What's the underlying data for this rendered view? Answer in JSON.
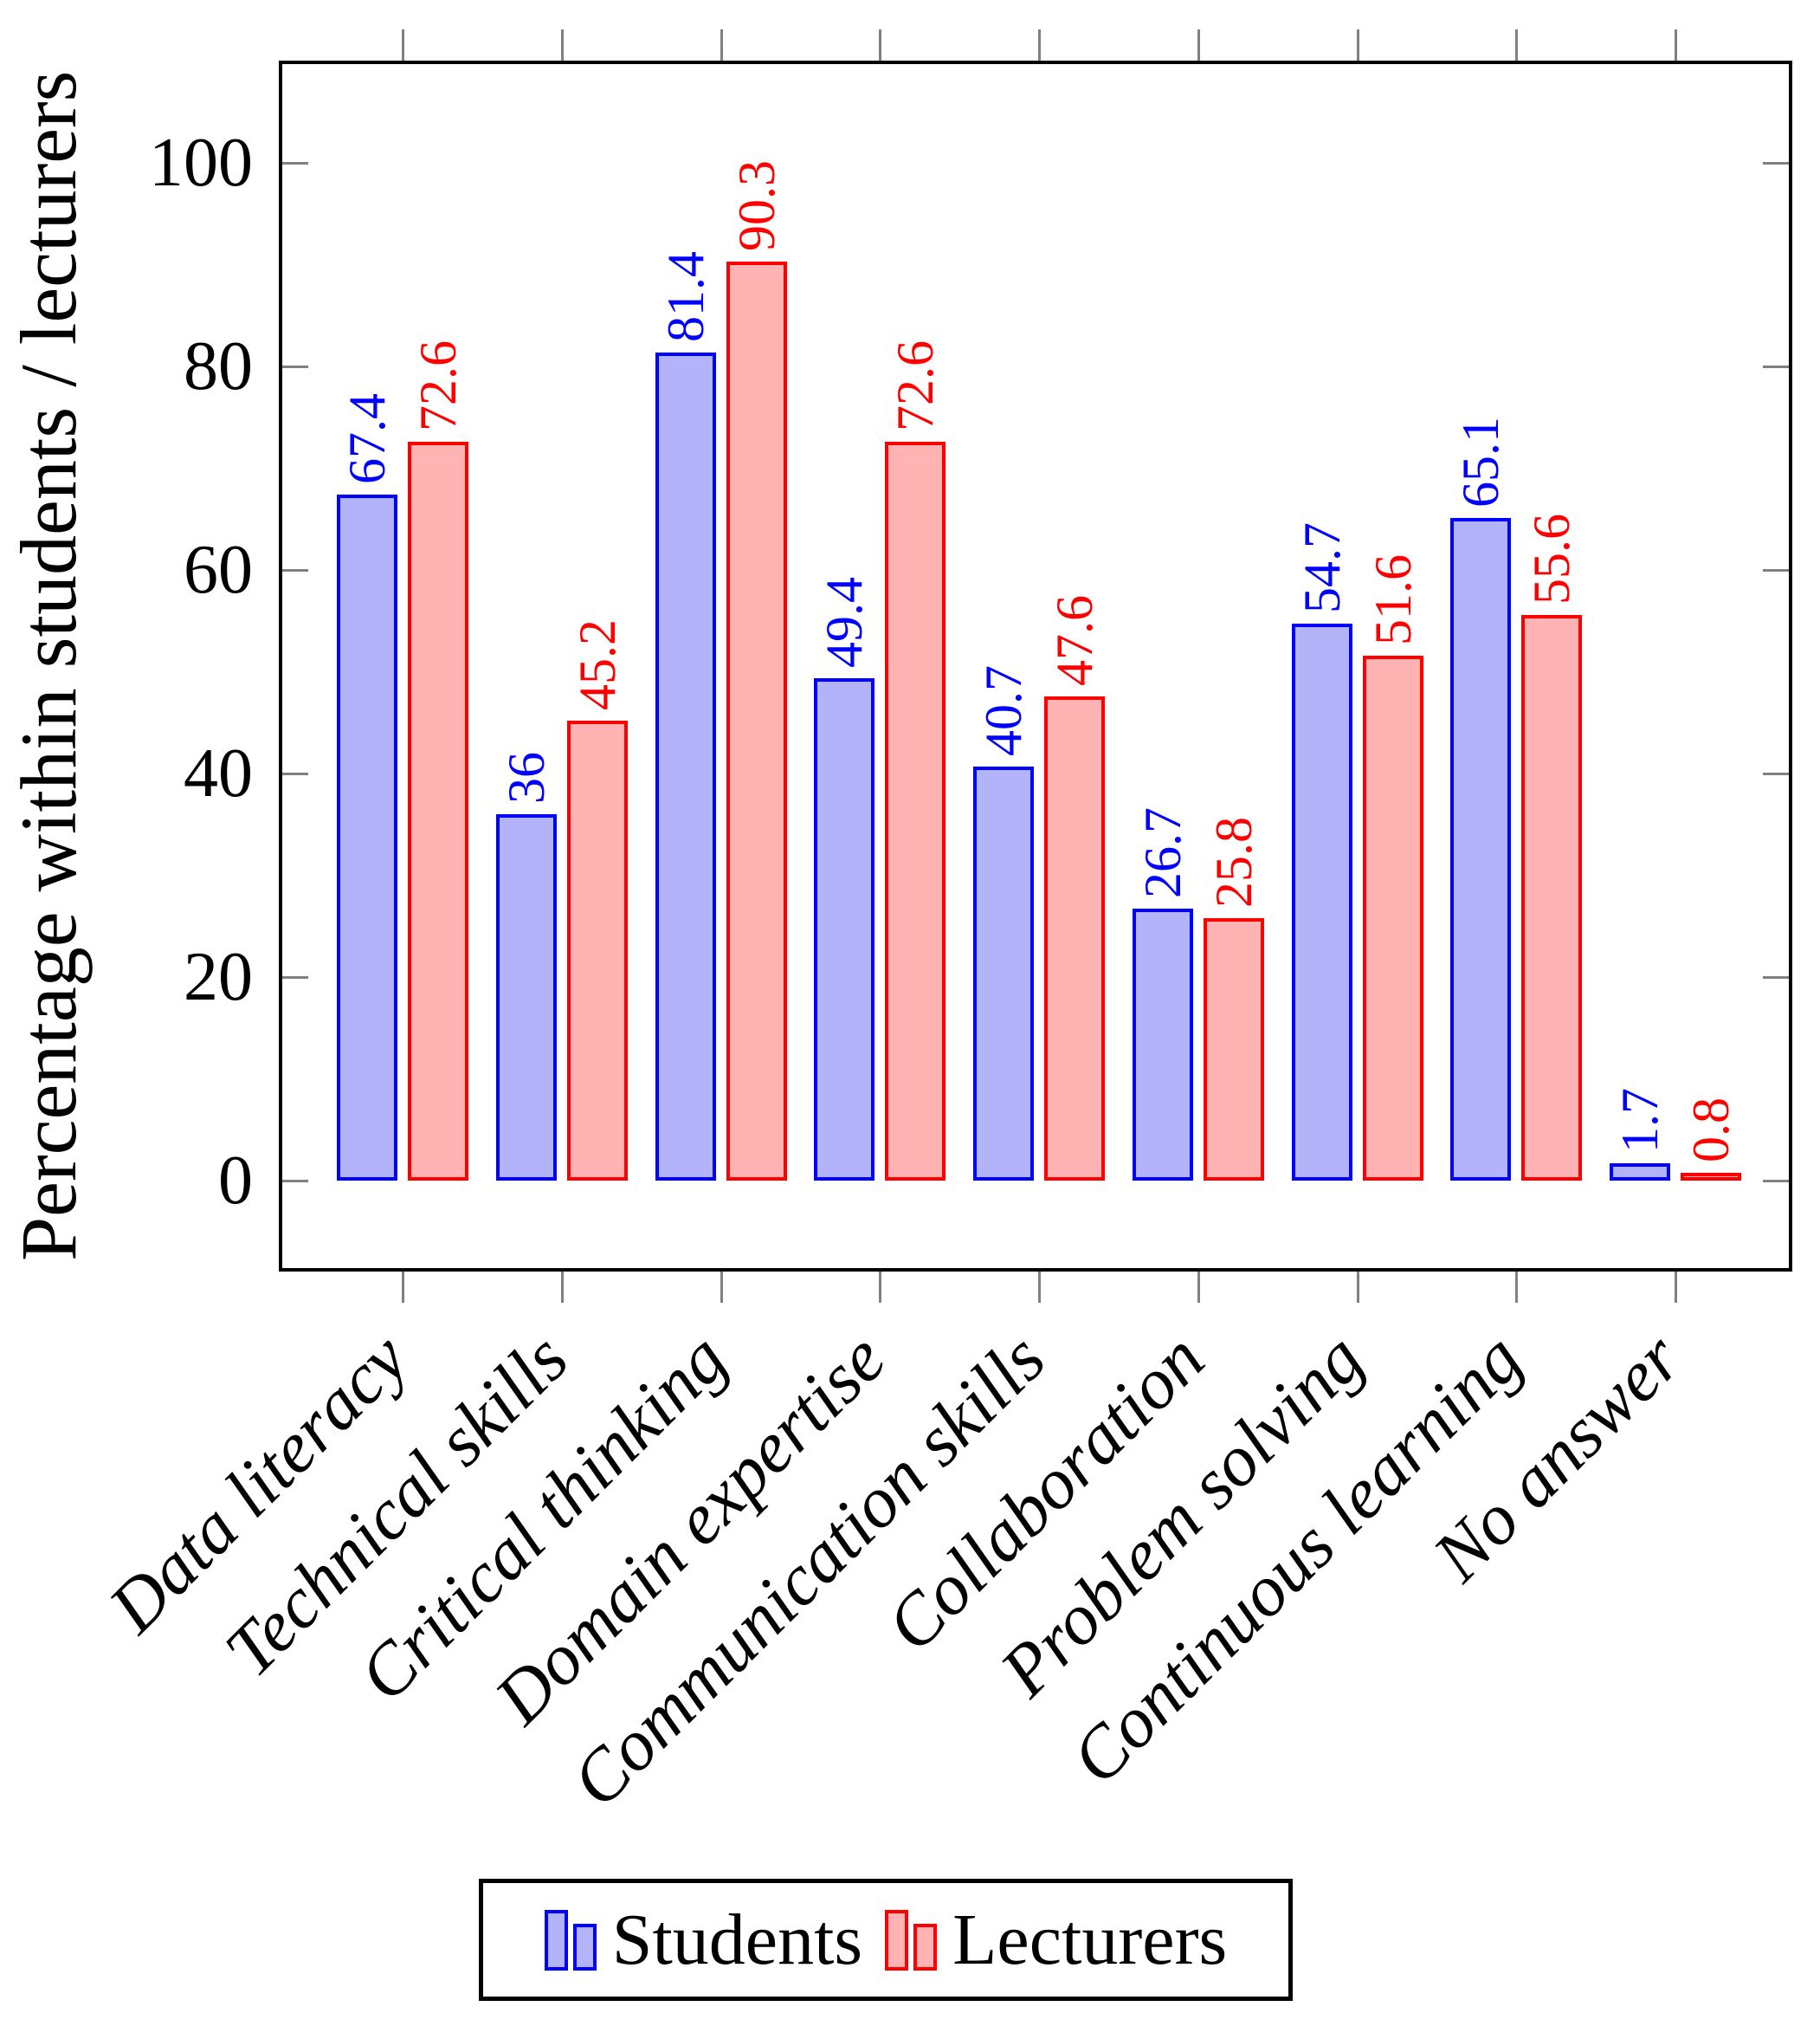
{
  "chart_data": {
    "type": "bar",
    "title": "",
    "xlabel": "",
    "ylabel": "Percentage within students / lecturers",
    "categories": [
      "Data literacy",
      "Technical skills",
      "Critical thinking",
      "Domain expertise",
      "Communication skills",
      "Collaboration",
      "Problem solving",
      "Continuous learning",
      "No answer"
    ],
    "series": [
      {
        "name": "Students",
        "color": "#0000FF",
        "fill": "#B3B3FA",
        "values": [
          67.4,
          36,
          81.4,
          49.4,
          40.7,
          26.7,
          54.7,
          65.1,
          1.7
        ],
        "value_labels": [
          "67.4",
          "36",
          "81.4",
          "49.4",
          "40.7",
          "26.7",
          "54.7",
          "65.1",
          "1.7"
        ]
      },
      {
        "name": "Lecturers",
        "color": "#FF0000",
        "fill": "#FFB3B3",
        "values": [
          72.6,
          45.2,
          90.3,
          72.6,
          47.6,
          25.8,
          51.6,
          55.6,
          0.8
        ],
        "value_labels": [
          "72.6",
          "45.2",
          "90.3",
          "72.6",
          "47.6",
          "25.8",
          "51.6",
          "55.6",
          "0.8"
        ]
      }
    ],
    "y_ticks": [
      0,
      20,
      40,
      60,
      80,
      100
    ],
    "ylim": [
      -9,
      110
    ],
    "grid": false,
    "legend_position": "below",
    "bar_value_labels_rotated": true,
    "colors": {
      "axis_frame": "#000000",
      "tick": "#808080",
      "background": "#FFFFFF"
    }
  }
}
